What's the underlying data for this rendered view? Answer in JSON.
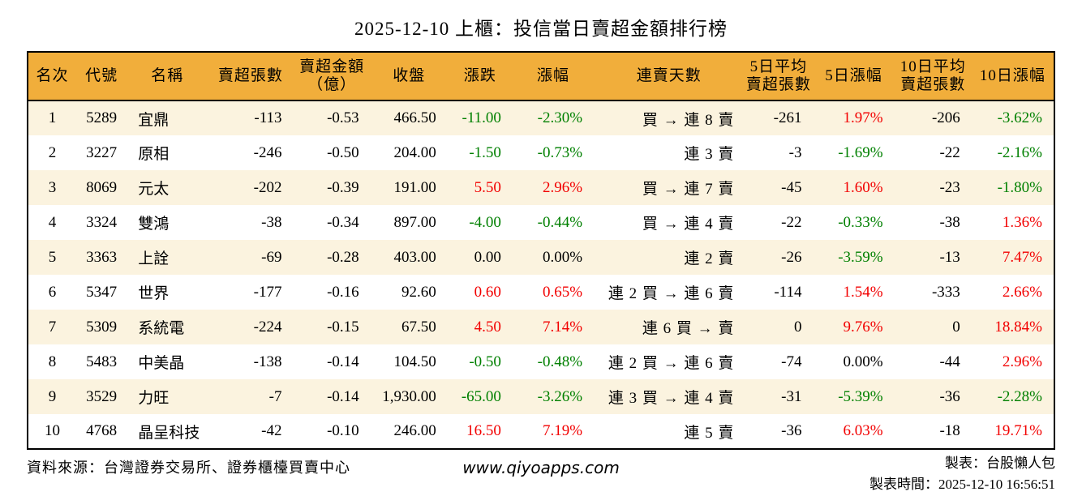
{
  "title": "2025-12-10 上櫃：投信當日賣超金額排行榜",
  "colors": {
    "up_red": "#f20000",
    "down_green": "#008000",
    "header_bg": "#f1ae3b",
    "row_alt_bg": "#fbf3df",
    "border": "#000000"
  },
  "table": {
    "headers": [
      {
        "label": "名次"
      },
      {
        "label": "代號"
      },
      {
        "label": "名稱"
      },
      {
        "label": "賣超張數"
      },
      {
        "label": "賣超金額\n（億）"
      },
      {
        "label": "收盤"
      },
      {
        "label": "漲跌"
      },
      {
        "label": "漲幅"
      },
      {
        "label": "連賣天數"
      },
      {
        "label": "5日平均\n賣超張數"
      },
      {
        "label": "5日漲幅"
      },
      {
        "label": "10日平均\n賣超張數"
      },
      {
        "label": "10日漲幅"
      }
    ],
    "rows": [
      {
        "rank": "1",
        "code": "5289",
        "name": "宜鼎",
        "sell_lots": "-113",
        "sell_amount": "-0.53",
        "close": "466.50",
        "change": "-11.00",
        "change_dir": "down",
        "change_pct": "-2.30%",
        "change_pct_dir": "down",
        "streak": "買 → 連 8 賣",
        "avg5": "-261",
        "pct5": "1.97%",
        "pct5_dir": "up",
        "avg10": "-206",
        "pct10": "-3.62%",
        "pct10_dir": "down"
      },
      {
        "rank": "2",
        "code": "3227",
        "name": "原相",
        "sell_lots": "-246",
        "sell_amount": "-0.50",
        "close": "204.00",
        "change": "-1.50",
        "change_dir": "down",
        "change_pct": "-0.73%",
        "change_pct_dir": "down",
        "streak": "連 3 賣",
        "avg5": "-3",
        "pct5": "-1.69%",
        "pct5_dir": "down",
        "avg10": "-22",
        "pct10": "-2.16%",
        "pct10_dir": "down"
      },
      {
        "rank": "3",
        "code": "8069",
        "name": "元太",
        "sell_lots": "-202",
        "sell_amount": "-0.39",
        "close": "191.00",
        "change": "5.50",
        "change_dir": "up",
        "change_pct": "2.96%",
        "change_pct_dir": "up",
        "streak": "買 → 連 7 賣",
        "avg5": "-45",
        "pct5": "1.60%",
        "pct5_dir": "up",
        "avg10": "-23",
        "pct10": "-1.80%",
        "pct10_dir": "down"
      },
      {
        "rank": "4",
        "code": "3324",
        "name": "雙鴻",
        "sell_lots": "-38",
        "sell_amount": "-0.34",
        "close": "897.00",
        "change": "-4.00",
        "change_dir": "down",
        "change_pct": "-0.44%",
        "change_pct_dir": "down",
        "streak": "買 → 連 4 賣",
        "avg5": "-22",
        "pct5": "-0.33%",
        "pct5_dir": "down",
        "avg10": "-38",
        "pct10": "1.36%",
        "pct10_dir": "up"
      },
      {
        "rank": "5",
        "code": "3363",
        "name": "上詮",
        "sell_lots": "-69",
        "sell_amount": "-0.28",
        "close": "403.00",
        "change": "0.00",
        "change_dir": "flat",
        "change_pct": "0.00%",
        "change_pct_dir": "flat",
        "streak": "連 2 賣",
        "avg5": "-26",
        "pct5": "-3.59%",
        "pct5_dir": "down",
        "avg10": "-13",
        "pct10": "7.47%",
        "pct10_dir": "up"
      },
      {
        "rank": "6",
        "code": "5347",
        "name": "世界",
        "sell_lots": "-177",
        "sell_amount": "-0.16",
        "close": "92.60",
        "change": "0.60",
        "change_dir": "up",
        "change_pct": "0.65%",
        "change_pct_dir": "up",
        "streak": "連 2 買 → 連 6 賣",
        "avg5": "-114",
        "pct5": "1.54%",
        "pct5_dir": "up",
        "avg10": "-333",
        "pct10": "2.66%",
        "pct10_dir": "up"
      },
      {
        "rank": "7",
        "code": "5309",
        "name": "系統電",
        "sell_lots": "-224",
        "sell_amount": "-0.15",
        "close": "67.50",
        "change": "4.50",
        "change_dir": "up",
        "change_pct": "7.14%",
        "change_pct_dir": "up",
        "streak": "連 6 買 → 賣",
        "avg5": "0",
        "pct5": "9.76%",
        "pct5_dir": "up",
        "avg10": "0",
        "pct10": "18.84%",
        "pct10_dir": "up"
      },
      {
        "rank": "8",
        "code": "5483",
        "name": "中美晶",
        "sell_lots": "-138",
        "sell_amount": "-0.14",
        "close": "104.50",
        "change": "-0.50",
        "change_dir": "down",
        "change_pct": "-0.48%",
        "change_pct_dir": "down",
        "streak": "連 2 買 → 連 6 賣",
        "avg5": "-74",
        "pct5": "0.00%",
        "pct5_dir": "flat",
        "avg10": "-44",
        "pct10": "2.96%",
        "pct10_dir": "up"
      },
      {
        "rank": "9",
        "code": "3529",
        "name": "力旺",
        "sell_lots": "-7",
        "sell_amount": "-0.14",
        "close": "1,930.00",
        "change": "-65.00",
        "change_dir": "down",
        "change_pct": "-3.26%",
        "change_pct_dir": "down",
        "streak": "連 3 買 → 連 4 賣",
        "avg5": "-31",
        "pct5": "-5.39%",
        "pct5_dir": "down",
        "avg10": "-36",
        "pct10": "-2.28%",
        "pct10_dir": "down"
      },
      {
        "rank": "10",
        "code": "4768",
        "name": "晶呈科技",
        "sell_lots": "-42",
        "sell_amount": "-0.10",
        "close": "246.00",
        "change": "16.50",
        "change_dir": "up",
        "change_pct": "7.19%",
        "change_pct_dir": "up",
        "streak": "連 5 賣",
        "avg5": "-36",
        "pct5": "6.03%",
        "pct5_dir": "up",
        "avg10": "-18",
        "pct10": "19.71%",
        "pct10_dir": "up"
      }
    ]
  },
  "footer": {
    "source": "資料來源：台灣證券交易所、證券櫃檯買賣中心",
    "website": "www.qiyoapps.com",
    "author": "製表：台股懶人包",
    "generated": "製表時間：2025-12-10 16:56:51"
  },
  "chart_data": {
    "type": "table",
    "title": "2025-12-10 上櫃：投信當日賣超金額排行榜",
    "columns": [
      "名次",
      "代號",
      "名稱",
      "賣超張數",
      "賣超金額（億）",
      "收盤",
      "漲跌",
      "漲幅",
      "連賣天數",
      "5日平均賣超張數",
      "5日漲幅",
      "10日平均賣超張數",
      "10日漲幅"
    ],
    "rows": [
      [
        "1",
        "5289",
        "宜鼎",
        "-113",
        "-0.53",
        "466.50",
        "-11.00",
        "-2.30%",
        "買 → 連 8 賣",
        "-261",
        "1.97%",
        "-206",
        "-3.62%"
      ],
      [
        "2",
        "3227",
        "原相",
        "-246",
        "-0.50",
        "204.00",
        "-1.50",
        "-0.73%",
        "連 3 賣",
        "-3",
        "-1.69%",
        "-22",
        "-2.16%"
      ],
      [
        "3",
        "8069",
        "元太",
        "-202",
        "-0.39",
        "191.00",
        "5.50",
        "2.96%",
        "買 → 連 7 賣",
        "-45",
        "1.60%",
        "-23",
        "-1.80%"
      ],
      [
        "4",
        "3324",
        "雙鴻",
        "-38",
        "-0.34",
        "897.00",
        "-4.00",
        "-0.44%",
        "買 → 連 4 賣",
        "-22",
        "-0.33%",
        "-38",
        "1.36%"
      ],
      [
        "5",
        "3363",
        "上詮",
        "-69",
        "-0.28",
        "403.00",
        "0.00",
        "0.00%",
        "連 2 賣",
        "-26",
        "-3.59%",
        "-13",
        "7.47%"
      ],
      [
        "6",
        "5347",
        "世界",
        "-177",
        "-0.16",
        "92.60",
        "0.60",
        "0.65%",
        "連 2 買 → 連 6 賣",
        "-114",
        "1.54%",
        "-333",
        "2.66%"
      ],
      [
        "7",
        "5309",
        "系統電",
        "-224",
        "-0.15",
        "67.50",
        "4.50",
        "7.14%",
        "連 6 買 → 賣",
        "0",
        "9.76%",
        "0",
        "18.84%"
      ],
      [
        "8",
        "5483",
        "中美晶",
        "-138",
        "-0.14",
        "104.50",
        "-0.50",
        "-0.48%",
        "連 2 買 → 連 6 賣",
        "-74",
        "0.00%",
        "-44",
        "2.96%"
      ],
      [
        "9",
        "3529",
        "力旺",
        "-7",
        "-0.14",
        "1,930.00",
        "-65.00",
        "-3.26%",
        "連 3 買 → 連 4 賣",
        "-31",
        "-5.39%",
        "-36",
        "-2.28%"
      ],
      [
        "10",
        "4768",
        "晶呈科技",
        "-42",
        "-0.10",
        "246.00",
        "16.50",
        "7.19%",
        "連 5 賣",
        "-36",
        "6.03%",
        "-18",
        "19.71%"
      ]
    ]
  }
}
